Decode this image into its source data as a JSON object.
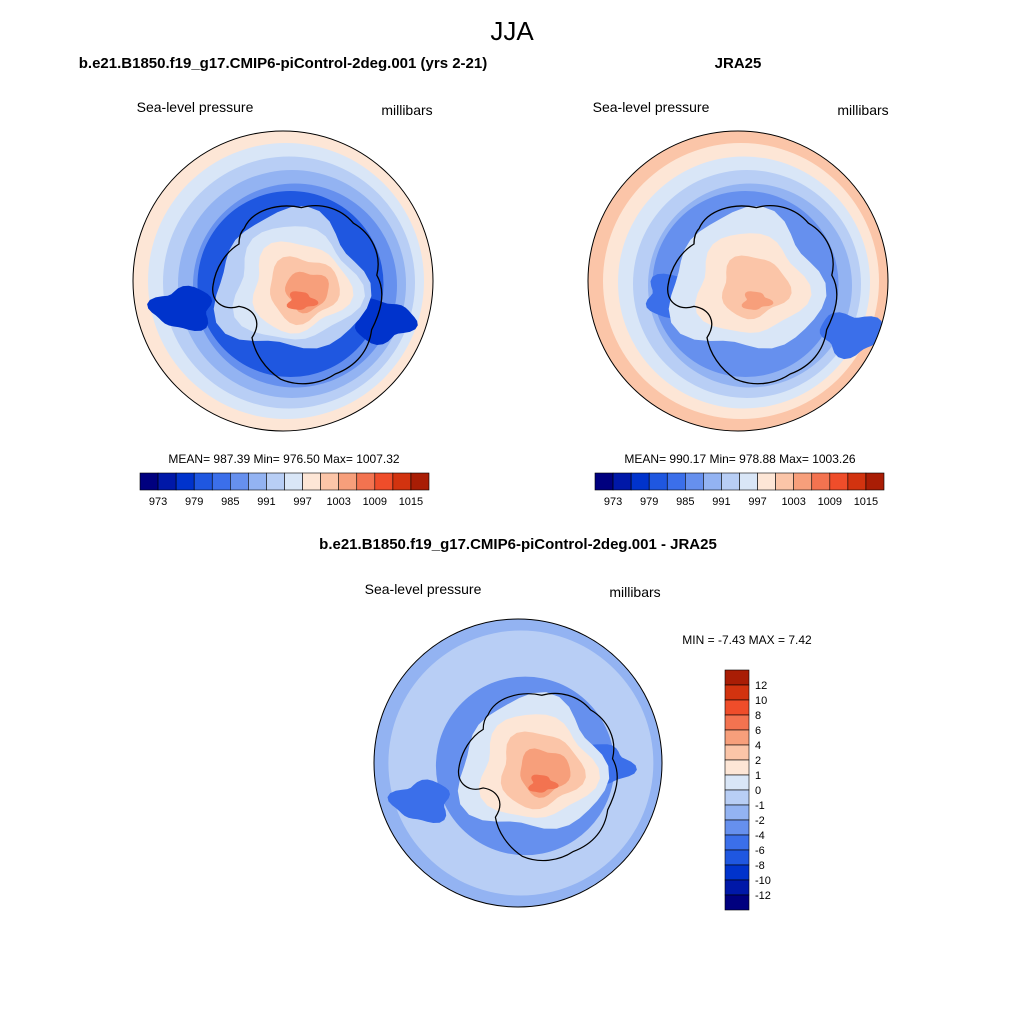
{
  "figure": {
    "season": "JJA",
    "variable": "Sea-level pressure",
    "units": "millibars"
  },
  "panels": [
    {
      "id": "model",
      "title": "b.e21.B1850.f19_g17.CMIP6-piControl-2deg.001 (yrs 2-21)",
      "left_label": "Sea-level pressure",
      "right_label": "millibars",
      "stats": "MEAN= 987.39  Min= 976.50  Max= 1007.32",
      "rim_level": 997,
      "ring_levels": [
        994,
        991,
        988,
        985
      ],
      "trough_level": 979,
      "trough_cells": [
        [
          "-8,-2",
          976
        ],
        [
          "8,-1",
          976
        ]
      ],
      "continent_levels": [
        991,
        994,
        997,
        1000,
        1003
      ],
      "continent_peak": 1006
    },
    {
      "id": "obs",
      "title": "JRA25",
      "left_label": "Sea-level pressure",
      "right_label": "millibars",
      "stats": "MEAN= 990.17  Min= 978.88  Max= 1003.26",
      "rim_level": 1000,
      "ring_levels": [
        997,
        994,
        991,
        988
      ],
      "trough_level": 985,
      "trough_cells": [
        [
          "-5,-3",
          982
        ],
        [
          "9,0",
          982
        ]
      ],
      "continent_levels": [
        994,
        997,
        1000
      ],
      "continent_peak": 1003
    },
    {
      "id": "diff",
      "title": "b.e21.B1850.f19_g17.CMIP6-piControl-2deg.001 - JRA25",
      "left_label": "Sea-level pressure",
      "right_label": "millibars",
      "stats": "MIN =  -7.43 MAX =   7.42",
      "rim_level": -2,
      "ring_levels": [
        -1
      ],
      "trough_level": -4,
      "trough_cells": [
        [
          "-8,-1",
          -6
        ],
        [
          "7,-4",
          -6
        ]
      ],
      "continent_levels": [
        0,
        1,
        2,
        4
      ],
      "continent_peak": 6
    }
  ],
  "colorbars": {
    "abs": {
      "orientation": "horizontal",
      "levels": [
        970,
        973,
        976,
        979,
        982,
        985,
        988,
        991,
        994,
        997,
        1000,
        1003,
        1006,
        1009,
        1012,
        1015,
        1018
      ],
      "tick_labels": [
        "973",
        "979",
        "985",
        "991",
        "997",
        "1003",
        "1009",
        "1015"
      ]
    },
    "diff": {
      "orientation": "vertical",
      "levels": [
        -14,
        -12,
        -10,
        -8,
        -6,
        -4,
        -2,
        -1,
        0,
        1,
        2,
        4,
        6,
        8,
        10,
        12,
        14
      ],
      "tick_labels": [
        "12",
        "10",
        "8",
        "6",
        "4",
        "2",
        "1",
        "0",
        "-1",
        "-2",
        "-4",
        "-6",
        "-8",
        "-10",
        "-12"
      ]
    }
  },
  "palette": [
    "#00007f",
    "#0018a8",
    "#0033cc",
    "#1f57e0",
    "#3b6fea",
    "#6690ee",
    "#93b3f2",
    "#b8cef5",
    "#d9e6f7",
    "#fde6d6",
    "#fbc5a8",
    "#f79f7b",
    "#f37350",
    "#ef4d2a",
    "#d2330f",
    "#a91d05",
    "#7f0a00"
  ],
  "chart_data": {
    "type": "heatmap",
    "title": "JJA",
    "projection": "south polar stereographic",
    "series": [
      {
        "name": "b.e21.B1850.f19_g17.CMIP6-piControl-2deg.001 (yrs 2-21)",
        "mean": 987.39,
        "min": 976.5,
        "max": 1007.32
      },
      {
        "name": "JRA25",
        "mean": 990.17,
        "min": 978.88,
        "max": 1003.26
      },
      {
        "name": "b.e21.B1850.f19_g17.CMIP6-piControl-2deg.001 - JRA25",
        "min": -7.43,
        "max": 7.42
      }
    ]
  }
}
